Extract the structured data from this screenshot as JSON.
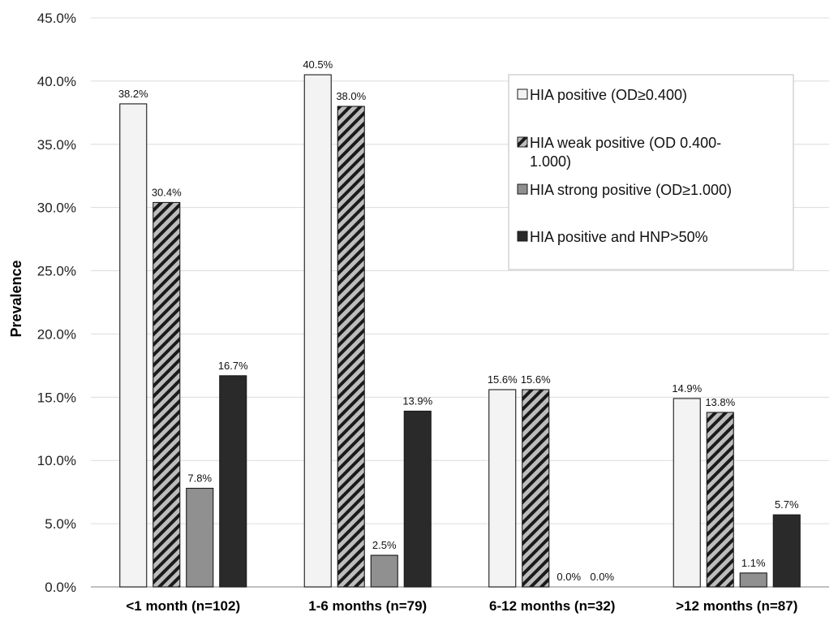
{
  "chart_data": {
    "type": "bar",
    "title": "",
    "xlabel": "",
    "ylabel": "Prevalence",
    "ylim": [
      0,
      45
    ],
    "y_ticks": [
      "0.0%",
      "5.0%",
      "10.0%",
      "15.0%",
      "20.0%",
      "25.0%",
      "30.0%",
      "35.0%",
      "40.0%",
      "45.0%"
    ],
    "grid": "horizontal",
    "legend_position": "top-right",
    "categories": [
      "<1 month (n=102)",
      "1-6 months (n=79)",
      "6-12 months (n=32)",
      ">12 months (n=87)"
    ],
    "series": [
      {
        "name": "HIA positive (OD≥0.400)",
        "values": [
          38.2,
          40.5,
          15.6,
          14.9
        ],
        "labels": [
          "38.2%",
          "40.5%",
          "15.6%",
          "14.9%"
        ],
        "color": "#f3f3f3",
        "pattern": "solid"
      },
      {
        "name": "HIA weak positive (OD 0.400-1.000)",
        "values": [
          30.4,
          38.0,
          15.6,
          13.8
        ],
        "labels": [
          "30.4%",
          "38.0%",
          "15.6%",
          "13.8%"
        ],
        "color": "#bdbdbd",
        "pattern": "diagonal-stripes"
      },
      {
        "name": "HIA strong positive (OD≥1.000)",
        "values": [
          7.8,
          2.5,
          0.0,
          1.1
        ],
        "labels": [
          "7.8%",
          "2.5%",
          "0.0%",
          "1.1%"
        ],
        "color": "#909090",
        "pattern": "solid"
      },
      {
        "name": "HIA positive and HNP>50%",
        "values": [
          16.7,
          13.9,
          0.0,
          5.7
        ],
        "labels": [
          "16.7%",
          "13.9%",
          "0.0%",
          "5.7%"
        ],
        "color": "#2a2a2a",
        "pattern": "solid"
      }
    ]
  }
}
